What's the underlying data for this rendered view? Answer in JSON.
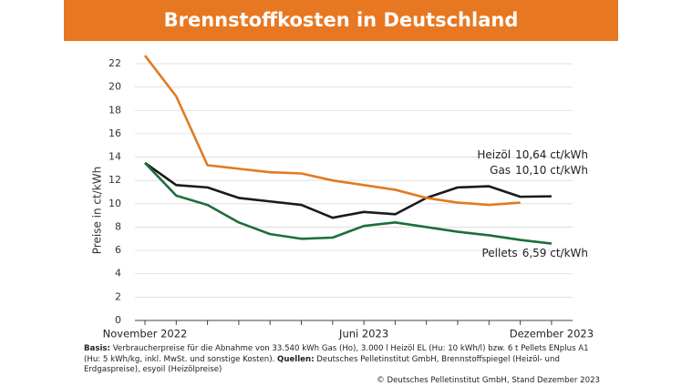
{
  "chart_data": {
    "type": "line",
    "title": "Brennstoffkosten in Deutschland",
    "y_label": "Preise in ct/kWh",
    "categories": [
      "November 2022",
      null,
      null,
      null,
      null,
      null,
      null,
      "Juni 2023",
      null,
      null,
      null,
      null,
      null,
      "Dezember 2023"
    ],
    "ylim": [
      0,
      22
    ],
    "yticks": [
      0,
      2,
      4,
      6,
      8,
      10,
      12,
      14,
      16,
      18,
      20,
      22
    ],
    "grid": true,
    "series": [
      {
        "name": "Heizöl",
        "color": "#1a1a1a",
        "values": [
          13.5,
          11.6,
          11.4,
          10.5,
          10.2,
          9.9,
          8.8,
          9.3,
          9.1,
          10.5,
          11.4,
          11.5,
          10.6,
          10.64
        ],
        "value_labels": [
          null,
          null,
          null,
          null,
          null,
          null,
          null,
          null,
          null,
          null,
          null,
          null,
          null,
          "10,64 ct/kWh"
        ]
      },
      {
        "name": "Gas",
        "color": "#e07b20",
        "values": [
          22.7,
          19.2,
          13.3,
          13.0,
          12.7,
          12.6,
          12.0,
          11.6,
          11.2,
          10.5,
          10.1,
          9.9,
          10.1,
          null
        ],
        "value_labels": [
          null,
          null,
          null,
          null,
          null,
          null,
          null,
          null,
          null,
          null,
          null,
          null,
          "10,10 ct/kWh",
          null
        ]
      },
      {
        "name": "Pellets",
        "color": "#1e6e3a",
        "values": [
          13.5,
          10.7,
          9.9,
          8.4,
          7.4,
          7.0,
          7.1,
          8.1,
          8.4,
          8.0,
          7.6,
          7.3,
          6.9,
          6.59
        ],
        "value_labels": [
          null,
          null,
          null,
          null,
          null,
          null,
          null,
          null,
          null,
          null,
          null,
          null,
          null,
          "6,59 ct/kWh"
        ]
      }
    ]
  },
  "footer": {
    "basis_label": "Basis:",
    "basis_text": "Verbraucherpreise für die Abnahme von 33.540 kWh Gas (Ho), 3.000 l Heizöl EL (Hu: 10 kWh/l) bzw. 6 t Pellets ENplus A1 (Hu: 5 kWh/kg, inkl. MwSt. und sonstige Kosten).",
    "sources_label": "Quellen:",
    "sources_text": "Deutsches Pelletinstitut GmbH, Brennstoffspiegel (Heizöl- und Erdgaspreise), esyoil (Heizölpreise)",
    "copyright": "© Deutsches Pelletinstitut GmbH, Stand Dezember 2023"
  }
}
